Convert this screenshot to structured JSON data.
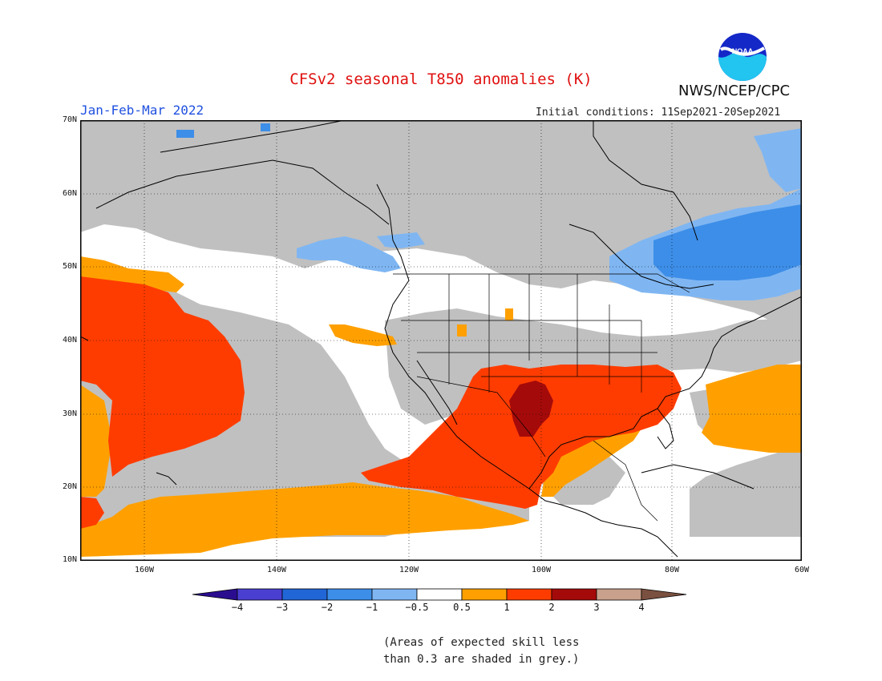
{
  "title": "CFSv2 seasonal T850 anomalies (K)",
  "period": "Jan-Feb-Mar 2022",
  "initial_conditions": "Initial conditions: 11Sep2021-20Sep2021",
  "agency": "NWS/NCEP/CPC",
  "logo_text": "NOAA",
  "lat_labels": [
    "70N",
    "60N",
    "50N",
    "40N",
    "30N",
    "20N",
    "10N"
  ],
  "lon_labels": [
    "160W",
    "140W",
    "120W",
    "100W",
    "80W",
    "60W"
  ],
  "colorbar": {
    "labels": [
      "−4",
      "−3",
      "−2",
      "−1",
      "−0.5",
      "0.5",
      "1",
      "2",
      "3",
      "4"
    ],
    "colors": [
      "#2a0d8f",
      "#4a3fd0",
      "#2166d6",
      "#3d8ee8",
      "#7fb6f2",
      "#ffffff",
      "#ffa000",
      "#ff3c00",
      "#a50a0a",
      "#c8a08c",
      "#7a5040"
    ]
  },
  "colors": {
    "grey": "#c0c0c0",
    "title": "#e01010",
    "period": "#1f50e0"
  },
  "note_line1": "(Areas of expected skill less",
  "note_line2": "than 0.3 are shaded in grey.)"
}
